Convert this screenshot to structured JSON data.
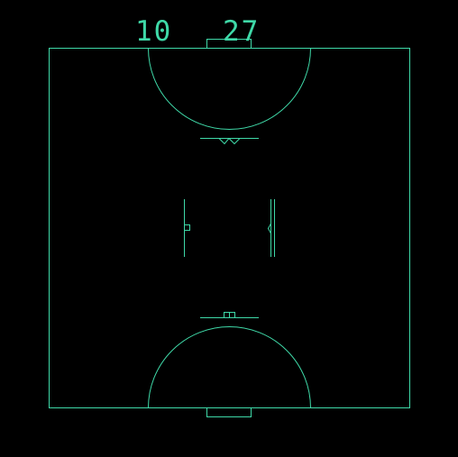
{
  "colors": {
    "background": "#000000",
    "line": "#3fd9a8"
  },
  "scoreboard": {
    "left_score": "10",
    "right_score": "27"
  }
}
